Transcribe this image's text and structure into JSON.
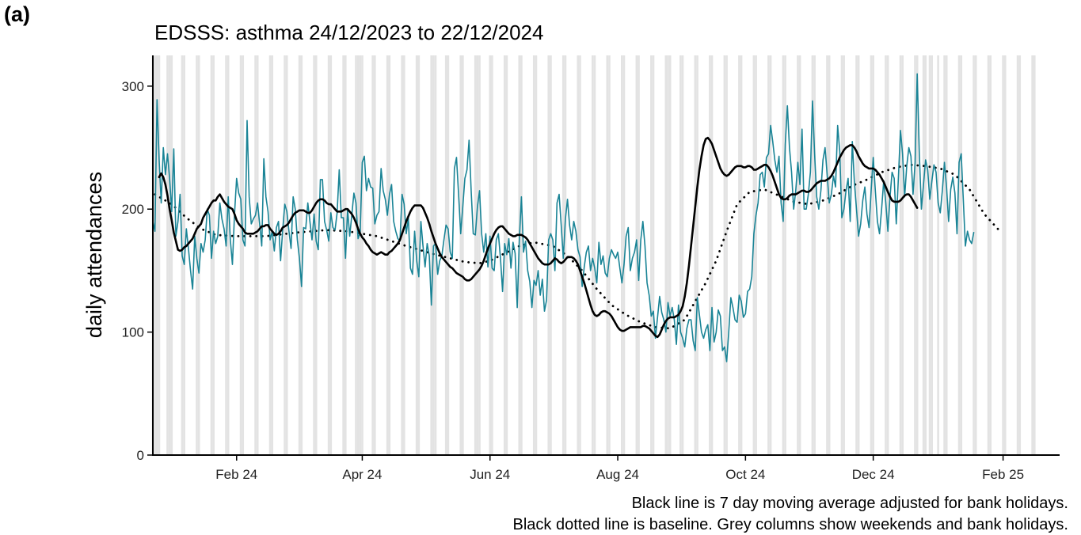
{
  "panel_label": "(a)",
  "colors": {
    "series": "#1a8496",
    "moving_average": "#000000",
    "baseline": "#000000",
    "weekend_columns": "#e3e3e3",
    "axis": "#000000"
  },
  "caption": {
    "line1": "Black line is 7 day moving average adjusted for bank holidays.",
    "line2": "Black dotted line is baseline. Grey columns show weekends and bank holidays."
  },
  "chart_data": {
    "type": "line",
    "title": "EDSSS: asthma 24/12/2023 to 22/12/2024",
    "xlabel": "",
    "ylabel": "daily attendances",
    "xlim": [
      "2023-12-23",
      "2025-02-28"
    ],
    "ylim": [
      0,
      325
    ],
    "y_ticks": [
      0,
      100,
      200,
      300
    ],
    "x_ticks": [
      {
        "date": "2024-02-01",
        "label": "Feb 24"
      },
      {
        "date": "2024-04-01",
        "label": "Apr 24"
      },
      {
        "date": "2024-06-01",
        "label": "Jun 24"
      },
      {
        "date": "2024-08-01",
        "label": "Aug 24"
      },
      {
        "date": "2024-10-01",
        "label": "Oct 24"
      },
      {
        "date": "2024-12-01",
        "label": "Dec 24"
      },
      {
        "date": "2025-02-01",
        "label": "Feb 25"
      }
    ],
    "grid": false,
    "legend": "none",
    "weekend_columns_start": "2023-12-23",
    "weekend_columns_end": "2025-02-16",
    "bank_holidays": [
      "2023-12-25",
      "2023-12-26",
      "2024-01-01",
      "2024-03-29",
      "2024-04-01",
      "2024-05-06",
      "2024-05-27",
      "2024-08-26",
      "2024-12-25",
      "2024-12-26",
      "2025-01-01"
    ],
    "series": [
      {
        "name": "daily attendances",
        "style": "teal thin line",
        "start_date": "2023-12-23",
        "values": [
          190,
          182,
          289,
          240,
          205,
          250,
          228,
          245,
          225,
          198,
          249,
          178,
          190,
          212,
          162,
          155,
          184,
          168,
          150,
          135,
          178,
          160,
          148,
          172,
          165,
          175,
          200,
          195,
          160,
          182,
          172,
          178,
          205,
          192,
          184,
          170,
          210,
          175,
          155,
          196,
          225,
          213,
          208,
          175,
          170,
          272,
          210,
          188,
          192,
          195,
          205,
          188,
          170,
          241,
          210,
          198,
          175,
          182,
          166,
          185,
          190,
          158,
          183,
          204,
          198,
          182,
          168,
          210,
          200,
          175,
          160,
          137,
          185,
          184,
          205,
          190,
          175,
          196,
          174,
          167,
          224,
          224,
          190,
          183,
          174,
          197,
          185,
          183,
          197,
          232,
          193,
          193,
          160,
          200,
          178,
          195,
          213,
          205,
          176,
          181,
          238,
          243,
          215,
          225,
          218,
          217,
          188,
          195,
          198,
          233,
          215,
          208,
          195,
          212,
          220,
          190,
          182,
          176,
          174,
          212,
          204,
          180,
          193,
          152,
          147,
          182,
          158,
          145,
          190,
          170,
          153,
          172,
          162,
          122,
          170,
          172,
          147,
          158,
          162,
          175,
          187,
          184,
          165,
          160,
          233,
          242,
          212,
          180,
          202,
          225,
          232,
          256,
          215,
          180,
          179,
          202,
          215,
          180,
          165,
          180,
          153,
          178,
          152,
          150,
          175,
          180,
          160,
          133,
          172,
          163,
          176,
          152,
          173,
          164,
          120,
          175,
          210,
          165,
          174,
          150,
          141,
          120,
          142,
          138,
          150,
          130,
          143,
          117,
          126,
          175,
          180,
          175,
          150,
          205,
          212,
          187,
          160,
          192,
          208,
          187,
          175,
          190,
          182,
          167,
          161,
          137,
          153,
          165,
          170,
          150,
          160,
          152,
          140,
          173,
          155,
          162,
          148,
          145,
          160,
          167,
          163,
          160,
          165,
          152,
          140,
          155,
          178,
          185,
          150,
          160,
          165,
          175,
          142,
          175,
          190,
          170,
          140,
          130,
          113,
          117,
          95,
          112,
          129,
          116,
          110,
          100,
          124,
          113,
          120,
          110,
          90,
          122,
          100,
          95,
          88,
          103,
          110,
          110,
          93,
          85,
          128,
          114,
          100,
          95,
          102,
          106,
          85,
          120,
          92,
          100,
          118,
          113,
          85,
          88,
          76,
          100,
          128,
          120,
          110,
          108,
          130,
          125,
          112,
          115,
          133,
          135,
          145,
          180,
          195,
          205,
          228,
          230,
          218,
          242,
          245,
          268,
          255,
          240,
          230,
          243,
          205,
          190,
          253,
          284,
          250,
          230,
          200,
          215,
          238,
          220,
          265,
          200,
          200,
          212,
          230,
          288,
          245,
          210,
          200,
          215,
          240,
          250,
          228,
          205,
          212,
          227,
          218,
          268,
          247,
          193,
          200,
          215,
          225,
          190,
          255,
          222,
          200,
          178,
          188,
          207,
          218,
          196,
          185,
          215,
          242,
          215,
          190,
          180,
          200,
          223,
          205,
          182,
          210,
          230,
          225,
          188,
          225,
          264,
          245,
          210,
          235,
          250,
          243,
          212,
          238,
          310,
          245,
          200,
          220,
          240,
          232,
          208,
          223,
          236,
          230,
          205,
          197,
          215,
          238,
          218,
          190,
          216,
          226,
          213,
          180,
          238,
          245,
          208,
          170,
          182,
          175,
          172,
          181
        ]
      },
      {
        "name": "7 day moving average",
        "style": "black thick line",
        "start_date": "2023-12-26",
        "values": [
          226,
          229,
          226,
          220,
          211,
          200,
          191,
          181,
          174,
          167,
          166,
          167,
          169,
          170,
          172,
          174,
          176,
          180,
          184,
          186,
          188,
          193,
          196,
          199,
          202,
          205,
          207,
          207,
          210,
          212,
          209,
          206,
          204,
          202,
          201,
          200,
          196,
          191,
          188,
          186,
          184,
          181,
          180,
          180,
          180,
          180,
          181,
          182,
          184,
          186,
          186,
          187,
          187,
          184,
          182,
          180,
          179,
          180,
          182,
          185,
          186,
          187,
          189,
          192,
          195,
          197,
          198,
          199,
          199,
          199,
          198,
          197,
          197,
          199,
          202,
          205,
          207,
          208,
          208,
          207,
          205,
          204,
          204,
          202,
          200,
          198,
          198,
          198,
          199,
          200,
          200,
          198,
          196,
          193,
          189,
          184,
          180,
          177,
          175,
          172,
          170,
          167,
          165,
          164,
          163,
          164,
          165,
          164,
          163,
          163,
          165,
          166,
          168,
          170,
          172,
          175,
          180,
          185,
          190,
          194,
          198,
          201,
          203,
          203,
          203,
          203,
          201,
          197,
          193,
          188,
          182,
          177,
          172,
          168,
          164,
          161,
          159,
          157,
          155,
          153,
          152,
          150,
          148,
          147,
          146,
          145,
          143,
          142,
          142,
          143,
          145,
          147,
          149,
          151,
          154,
          158,
          163,
          168,
          172,
          176,
          180,
          183,
          185,
          186,
          186,
          184,
          182,
          180,
          179,
          178,
          178,
          179,
          179,
          179,
          178,
          177,
          175,
          172,
          169,
          166,
          163,
          160,
          158,
          156,
          155,
          155,
          155,
          156,
          158,
          160,
          159,
          157,
          156,
          157,
          159,
          161,
          161,
          161,
          160,
          158,
          155,
          150,
          145,
          140,
          134,
          128,
          122,
          117,
          114,
          113,
          114,
          116,
          117,
          117,
          116,
          115,
          113,
          110,
          107,
          104,
          102,
          101,
          101,
          102,
          103,
          104,
          104,
          104,
          104,
          104,
          104,
          105,
          105,
          104,
          103,
          101,
          99,
          97,
          96,
          98,
          102,
          106,
          109,
          111,
          112,
          112,
          112,
          113,
          114,
          117,
          121,
          129,
          140,
          154,
          170,
          186,
          202,
          218,
          232,
          243,
          252,
          257,
          258,
          256,
          253,
          248,
          243,
          238,
          233,
          230,
          228,
          227,
          228,
          230,
          232,
          234,
          235,
          235,
          235,
          234,
          234,
          235,
          235,
          234,
          232,
          232,
          233,
          234,
          235,
          236,
          236,
          234,
          231,
          227,
          222,
          217,
          212,
          209,
          208,
          208,
          209,
          211,
          212,
          212,
          212,
          213,
          214,
          215,
          215,
          214,
          214,
          215,
          217,
          219,
          221,
          222,
          223,
          223,
          223,
          224,
          225,
          227,
          230,
          234,
          238,
          242,
          245,
          248,
          250,
          251,
          252,
          252,
          250,
          247,
          243,
          240,
          237,
          235,
          234,
          233,
          233,
          233,
          232,
          230,
          228,
          225,
          222,
          218,
          214,
          210,
          207,
          206,
          206,
          206,
          207,
          209,
          211,
          212,
          212,
          210,
          207,
          204,
          201
        ]
      },
      {
        "name": "baseline",
        "style": "black dotted line",
        "points": [
          [
            "2023-12-24",
            212
          ],
          [
            "2024-01-01",
            204
          ],
          [
            "2024-01-08",
            193
          ],
          [
            "2024-01-15",
            184
          ],
          [
            "2024-01-22",
            179
          ],
          [
            "2024-02-01",
            178
          ],
          [
            "2024-02-15",
            178
          ],
          [
            "2024-03-01",
            181
          ],
          [
            "2024-03-15",
            183
          ],
          [
            "2024-03-25",
            182
          ],
          [
            "2024-04-08",
            178
          ],
          [
            "2024-04-22",
            170
          ],
          [
            "2024-05-06",
            163
          ],
          [
            "2024-05-20",
            157
          ],
          [
            "2024-05-27",
            156
          ],
          [
            "2024-06-01",
            158
          ],
          [
            "2024-06-08",
            164
          ],
          [
            "2024-06-15",
            170
          ],
          [
            "2024-06-22",
            173
          ],
          [
            "2024-07-01",
            170
          ],
          [
            "2024-07-08",
            162
          ],
          [
            "2024-07-15",
            150
          ],
          [
            "2024-07-22",
            135
          ],
          [
            "2024-07-29",
            122
          ],
          [
            "2024-08-05",
            114
          ],
          [
            "2024-08-12",
            108
          ],
          [
            "2024-08-19",
            104
          ],
          [
            "2024-08-26",
            103
          ],
          [
            "2024-09-02",
            110
          ],
          [
            "2024-09-07",
            125
          ],
          [
            "2024-09-12",
            140
          ],
          [
            "2024-09-17",
            158
          ],
          [
            "2024-09-22",
            182
          ],
          [
            "2024-09-27",
            204
          ],
          [
            "2024-10-03",
            214
          ],
          [
            "2024-10-10",
            216
          ],
          [
            "2024-10-17",
            211
          ],
          [
            "2024-10-24",
            206
          ],
          [
            "2024-10-31",
            204
          ],
          [
            "2024-11-07",
            207
          ],
          [
            "2024-11-14",
            212
          ],
          [
            "2024-11-21",
            219
          ],
          [
            "2024-11-28",
            224
          ],
          [
            "2024-12-05",
            230
          ],
          [
            "2024-12-12",
            234
          ],
          [
            "2024-12-19",
            236
          ],
          [
            "2024-12-26",
            235
          ],
          [
            "2025-01-02",
            233
          ],
          [
            "2025-01-09",
            228
          ],
          [
            "2025-01-16",
            216
          ],
          [
            "2025-01-23",
            196
          ],
          [
            "2025-01-30",
            183
          ]
        ]
      }
    ]
  }
}
